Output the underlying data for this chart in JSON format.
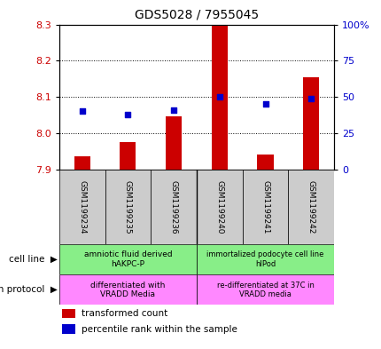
{
  "title": "GDS5028 / 7955045",
  "samples": [
    "GSM1199234",
    "GSM1199235",
    "GSM1199236",
    "GSM1199240",
    "GSM1199241",
    "GSM1199242"
  ],
  "transformed_count": [
    7.935,
    7.975,
    8.045,
    8.3,
    7.94,
    8.155
  ],
  "percentile_rank": [
    40,
    38,
    41,
    50,
    45,
    49
  ],
  "ylim_left": [
    7.9,
    8.3
  ],
  "ylim_right": [
    0,
    100
  ],
  "yticks_left": [
    7.9,
    8.0,
    8.1,
    8.2,
    8.3
  ],
  "yticks_right": [
    0,
    25,
    50,
    75,
    100
  ],
  "ytick_right_labels": [
    "0",
    "25",
    "50",
    "75",
    "100%"
  ],
  "bar_color": "#cc0000",
  "dot_color": "#0000cc",
  "bar_width": 0.35,
  "cell_line_text1": "amniotic fluid derived\nhAKPC-P",
  "cell_line_text2": "immortalized podocyte cell line\nhIPod",
  "cell_line_color": "#88ee88",
  "growth_text1": "differentiated with\nVRADD Media",
  "growth_text2": "re-differentiated at 37C in\nVRADD media",
  "growth_color": "#ff88ff",
  "legend_items": [
    "transformed count",
    "percentile rank within the sample"
  ],
  "legend_colors": [
    "#cc0000",
    "#0000cc"
  ],
  "tick_color_left": "#cc0000",
  "tick_color_right": "#0000cc",
  "bg_color": "#ffffff",
  "sample_bg_color": "#cccccc",
  "grid_color": "#000000",
  "label_left": [
    "cell line",
    "growth protocol"
  ]
}
